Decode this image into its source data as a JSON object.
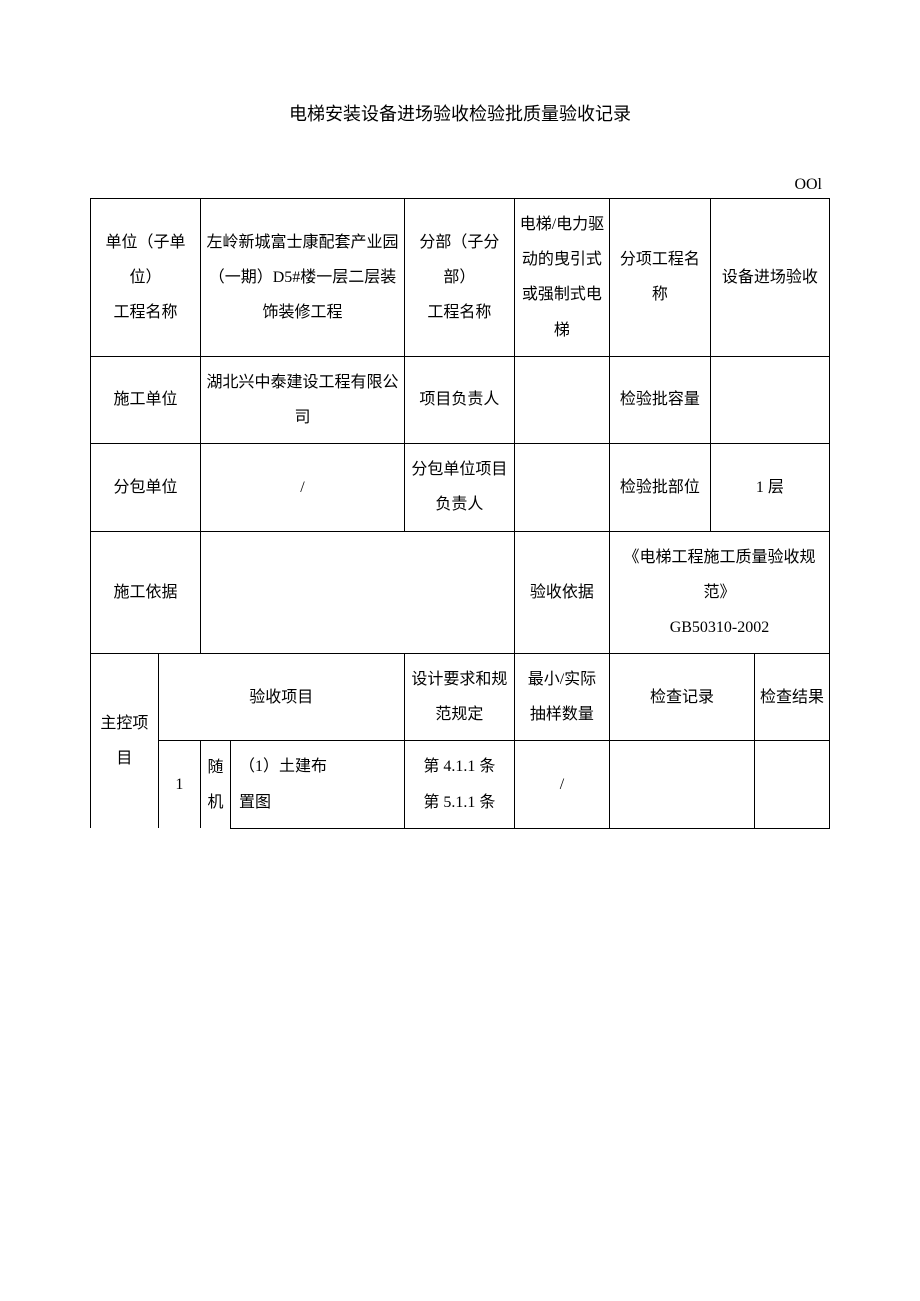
{
  "title": "电梯安装设备进场验收检验批质量验收记录",
  "doc_number": "OOl",
  "row1": {
    "c1_label": "单位（子单位）\n工程名称",
    "c1_value": "左岭新城富士康配套产业园（一期）D5#楼一层二层装饰装修工程",
    "c2_label": "分部（子分部）\n工程名称",
    "c2_value": "电梯/电力驱动的曳引式或强制式电梯",
    "c3_label": "分项工程名称",
    "c3_value": "设备进场验收"
  },
  "row2": {
    "c1_label": "施工单位",
    "c1_value": "湖北兴中泰建设工程有限公司",
    "c2_label": "项目负责人",
    "c2_value": "",
    "c3_label": "检验批容量",
    "c3_value": ""
  },
  "row3": {
    "c1_label": "分包单位",
    "c1_value": "/",
    "c2_label": "分包单位项目\n负责人",
    "c2_value": "",
    "c3_label": "检验批部位",
    "c3_value": "1 层"
  },
  "row4": {
    "c1_label": "施工依据",
    "c1_value": "",
    "c2_label": "验收依据",
    "c2_value": "《电梯工程施工质量验收规范》\nGB50310-2002"
  },
  "section_header": {
    "main_label": "主控项目",
    "col_accept": "验收项目",
    "col_design": "设计要求和规范规定",
    "col_sample": "最小/实际\n抽样数量",
    "col_record": "检查记录",
    "col_result": "检查结果"
  },
  "item1": {
    "num": "1",
    "sub_label": "随机",
    "name": "（1）土建布\n置图",
    "design": "第 4.1.1 条\n第 5.1.1 条",
    "sample": "/",
    "record": "",
    "result": ""
  }
}
